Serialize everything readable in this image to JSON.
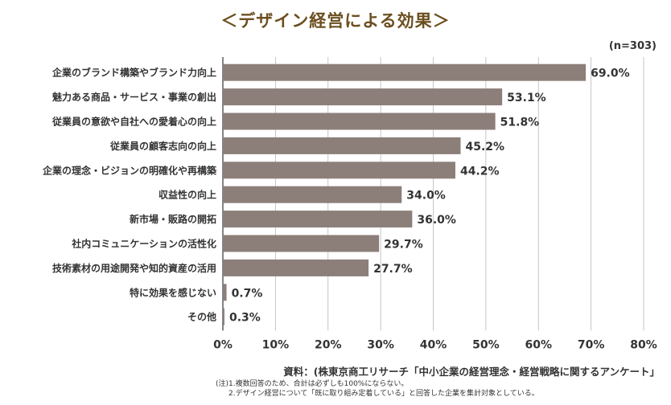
{
  "title": "＜デザイン経営による効果＞",
  "sample_size": "(n=303)",
  "source": "資料：(株東京商工リサーチ「中小企業の経営理念・経営戦略に関するアンケート」",
  "notes": [
    "(注)1.複数回答のため、合計は必ずしも100%にならない。",
    "2.デザイン経営について「既に取り組み定着している」と回答した企業を集計対象としている。"
  ],
  "colors": {
    "bar": "#8c7f7a",
    "axis": "#333333",
    "grid": "#b8b8b8",
    "title": "#6b4f1f"
  },
  "chart_data": {
    "type": "bar",
    "orientation": "horizontal",
    "categories": [
      "企業のブランド構築やブランド力向上",
      "魅力ある商品・サービス・事業の創出",
      "従業員の意欲や自社への愛着心の向上",
      "従業員の顧客志向の向上",
      "企業の理念・ビジョンの明確化や再構築",
      "収益性の向上",
      "新市場・販路の開拓",
      "社内コミュニケーションの活性化",
      "技術素材の用途開発や知的資産の活用",
      "特に効果を感じない",
      "その他"
    ],
    "values": [
      69.0,
      53.1,
      51.8,
      45.2,
      44.2,
      34.0,
      36.0,
      29.7,
      27.7,
      0.7,
      0.3
    ],
    "value_labels": [
      "69.0%",
      "53.1%",
      "51.8%",
      "45.2%",
      "44.2%",
      "34.0%",
      "36.0%",
      "29.7%",
      "27.7%",
      "0.7%",
      "0.3%"
    ],
    "xlim": [
      0,
      80
    ],
    "xticks": [
      0,
      10,
      20,
      30,
      40,
      50,
      60,
      70,
      80
    ],
    "xtick_labels": [
      "0%",
      "10%",
      "20%",
      "30%",
      "40%",
      "50%",
      "60%",
      "70%",
      "80%"
    ],
    "grid": true,
    "legend": "none"
  }
}
